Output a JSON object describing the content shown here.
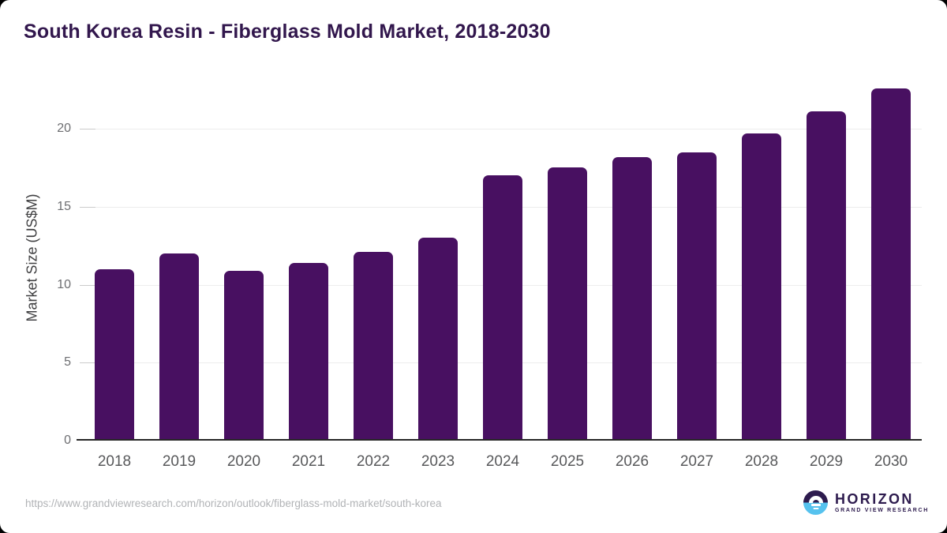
{
  "header": {
    "title": "South Korea Resin - Fiberglass Mold Market, 2018-2030"
  },
  "chart_data": {
    "type": "bar",
    "title": "South Korea Resin - Fiberglass Mold Market, 2018-2030",
    "ylabel": "Market Size (US$M)",
    "xlabel": "",
    "categories": [
      "2018",
      "2019",
      "2020",
      "2021",
      "2022",
      "2023",
      "2024",
      "2025",
      "2026",
      "2027",
      "2028",
      "2029",
      "2030"
    ],
    "values": [
      11.0,
      12.0,
      10.9,
      11.4,
      12.1,
      13.0,
      17.0,
      17.5,
      18.2,
      18.5,
      19.7,
      21.1,
      22.6
    ],
    "yticks": [
      0,
      5,
      10,
      15,
      20
    ],
    "ylim": [
      0,
      23.2
    ],
    "grid": true,
    "legend": false,
    "bar_color": "#481061"
  },
  "footer": {
    "source_url": "https://www.grandviewresearch.com/horizon/outlook/fiberglass-mold-market/south-korea",
    "logo": {
      "name": "HORIZON",
      "tagline": "GRAND VIEW RESEARCH"
    }
  },
  "colors": {
    "title_text": "#32174d",
    "bar": "#481061",
    "axis_line": "#262626",
    "gridline": "#ededed",
    "tick": "#cbcbcb",
    "x_label": "#58595b",
    "y_tick_label": "#6d6e71",
    "y_axis_title": "#404042",
    "url_text": "#b1b3b6",
    "logo_purple": "#2d1b4e",
    "logo_blue": "#56c2ee"
  }
}
